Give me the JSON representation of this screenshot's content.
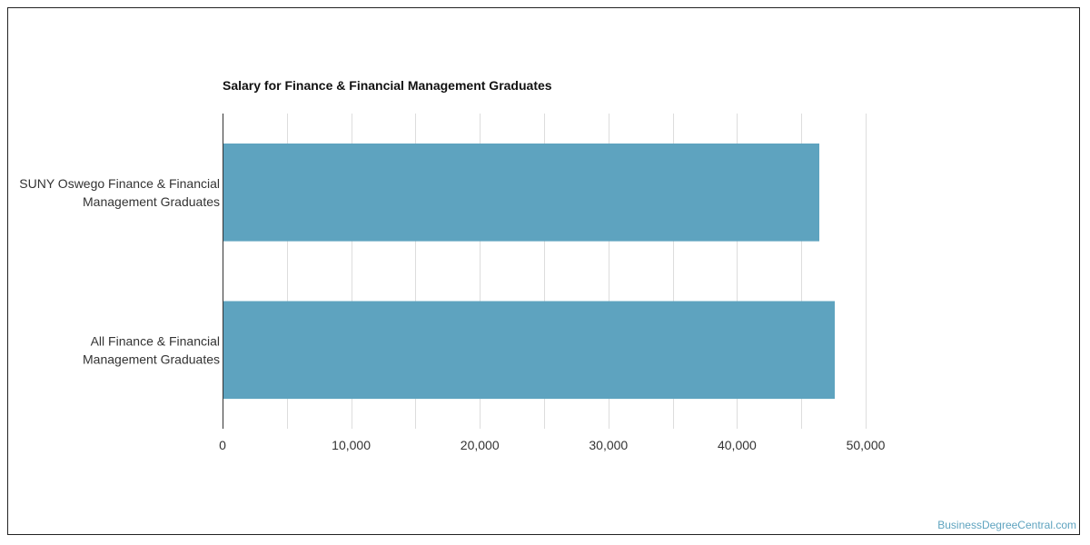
{
  "chart_data": {
    "type": "bar",
    "orientation": "horizontal",
    "title": "Salary for Finance & Financial Management Graduates",
    "categories": [
      [
        "SUNY Oswego Finance & Financial",
        "Management Graduates"
      ],
      [
        "All Finance & Financial",
        "Management Graduates"
      ]
    ],
    "values": [
      46400,
      47600
    ],
    "xlim": [
      0,
      50000
    ],
    "xticks": [
      0,
      10000,
      20000,
      30000,
      40000,
      50000
    ],
    "xtick_labels": [
      "0",
      "10,000",
      "20,000",
      "30,000",
      "40,000",
      "50,000"
    ],
    "grid": true,
    "bar_color": "#5ea3bf",
    "grid_color": "#dddddd",
    "axis_color": "#333333"
  },
  "credit": {
    "text": "BusinessDegreeCentral.com",
    "color": "#5ea3bf"
  }
}
